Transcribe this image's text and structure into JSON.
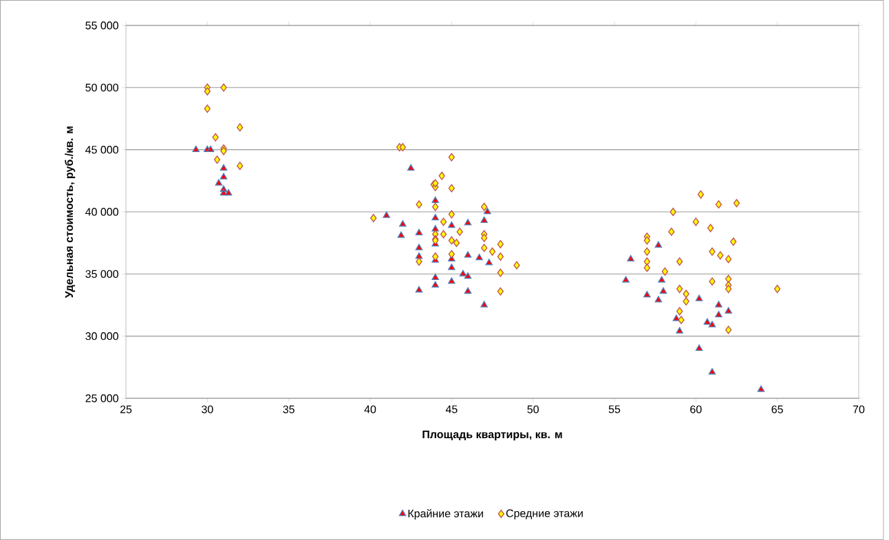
{
  "chart_data": {
    "type": "scatter",
    "xlabel": "Площадь квартиры, кв. м",
    "ylabel": "Удельная стоимость, руб./кв. м",
    "xlim": [
      25,
      70
    ],
    "xticks": [
      25,
      30,
      35,
      40,
      45,
      50,
      55,
      60,
      65,
      70
    ],
    "ylim": [
      25000,
      55000
    ],
    "yticks": [
      {
        "value": 25000,
        "label": "25 000"
      },
      {
        "value": 30000,
        "label": "30 000"
      },
      {
        "value": 35000,
        "label": "35 000"
      },
      {
        "value": 40000,
        "label": "40 000"
      },
      {
        "value": 45000,
        "label": "45 000"
      },
      {
        "value": 50000,
        "label": "50 000"
      },
      {
        "value": 55000,
        "label": "55 000"
      }
    ],
    "grid": "y",
    "legend": "bottom",
    "series": [
      {
        "name": "Крайние этажи",
        "color": "#ff0000",
        "marker": "triangle",
        "x": [
          29.3,
          30,
          30.2,
          31,
          31,
          30.7,
          31,
          31,
          31.3,
          41,
          42,
          41.9,
          42.5,
          43,
          43,
          43,
          43,
          44,
          44,
          44,
          44,
          44,
          44,
          44,
          45,
          45,
          45,
          45,
          45.7,
          46,
          46,
          46,
          46,
          46.7,
          47,
          47,
          47.2,
          47.3,
          55.7,
          56,
          57,
          57.7,
          57.7,
          57.9,
          58,
          58.8,
          59,
          60.2,
          60.2,
          60.7,
          61,
          61,
          61.4,
          61.4,
          62,
          64
        ],
        "values": [
          45000,
          45000,
          45000,
          43500,
          42800,
          42300,
          41800,
          41500,
          41500,
          39700,
          39000,
          38100,
          43500,
          38300,
          37100,
          36400,
          33700,
          40900,
          39500,
          38600,
          37400,
          34700,
          34100,
          36100,
          38900,
          36200,
          35500,
          34400,
          35000,
          39100,
          36500,
          34800,
          33600,
          36300,
          39300,
          32500,
          40000,
          35900,
          34500,
          36200,
          33300,
          37300,
          32900,
          34500,
          33600,
          31400,
          30400,
          33000,
          29000,
          31100,
          30900,
          27100,
          31700,
          32500,
          32000,
          25700
        ]
      },
      {
        "name": "Средние этажи",
        "color": "#ffff00",
        "marker": "diamond",
        "x": [
          30,
          30,
          31,
          30,
          32,
          30.5,
          30.6,
          31,
          31,
          32,
          40.2,
          41.8,
          42,
          43,
          43,
          43.9,
          44,
          44,
          44.4,
          44,
          44,
          44,
          44,
          44,
          44.5,
          44.5,
          45,
          45,
          45,
          45,
          45,
          45.3,
          45.5,
          47,
          47,
          47,
          47,
          47.5,
          48,
          48,
          48,
          48,
          49,
          57,
          57,
          57,
          57,
          57,
          58.1,
          58.5,
          58.6,
          59,
          59,
          59,
          59.1,
          59.4,
          59.4,
          60,
          60.3,
          60.9,
          61,
          61,
          61.4,
          61.5,
          62,
          62,
          62,
          62,
          62,
          62.3,
          62.5,
          65
        ],
        "values": [
          50000,
          49700,
          50000,
          48300,
          46800,
          46000,
          44200,
          45100,
          44900,
          43700,
          39500,
          45200,
          45200,
          40600,
          36000,
          42200,
          42000,
          42300,
          42900,
          40400,
          38200,
          37800,
          37700,
          36400,
          39200,
          38200,
          44400,
          41900,
          39800,
          37700,
          36600,
          37500,
          38400,
          40400,
          38200,
          37900,
          37100,
          36800,
          37400,
          36400,
          35100,
          33600,
          35700,
          38000,
          37700,
          36800,
          36000,
          35500,
          35200,
          38400,
          40000,
          36000,
          33800,
          32000,
          31300,
          33400,
          32800,
          39200,
          41400,
          38700,
          36800,
          34400,
          40600,
          36500,
          36200,
          34600,
          34100,
          33800,
          30500,
          37600,
          40700,
          33800
        ]
      }
    ]
  }
}
